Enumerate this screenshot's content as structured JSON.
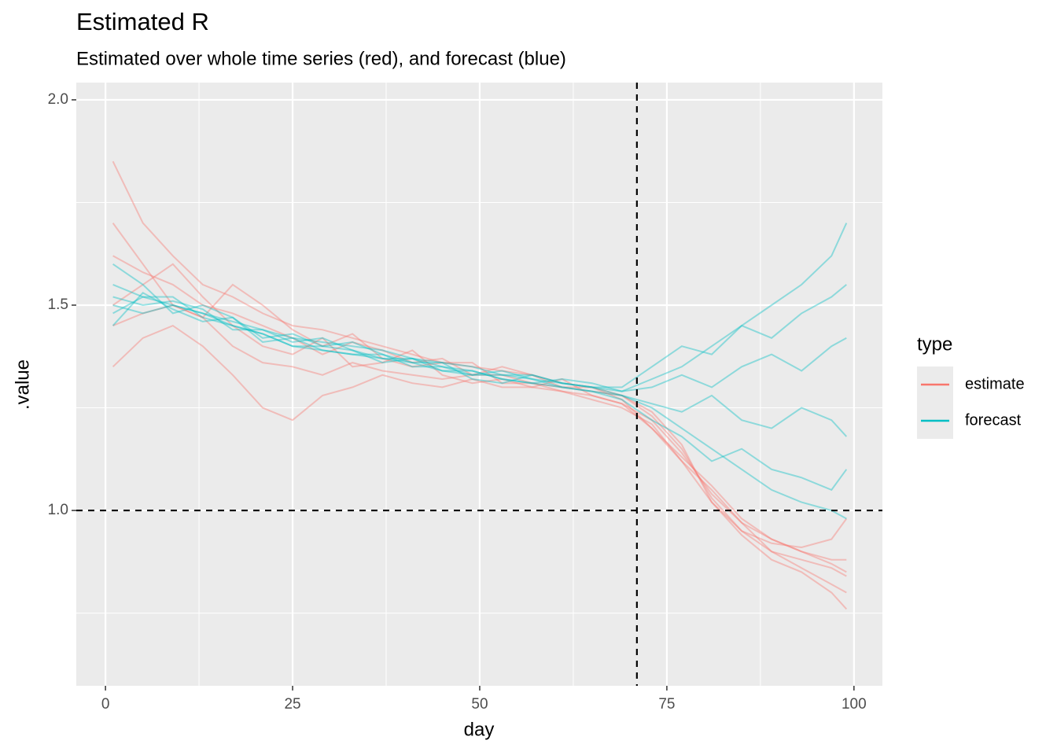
{
  "chart_data": {
    "type": "line",
    "title": "Estimated R",
    "subtitle": "Estimated over whole time series (red), and forecast (blue)",
    "x_label": "day",
    "y_label": ".value",
    "x": [
      1,
      5,
      9,
      13,
      17,
      21,
      25,
      29,
      33,
      37,
      41,
      45,
      49,
      53,
      57,
      61,
      65,
      69,
      73,
      77,
      81,
      85,
      89,
      93,
      97,
      99
    ],
    "series": [
      {
        "name": "estimate",
        "color": "#F8766D",
        "lines": [
          [
            1.85,
            1.7,
            1.62,
            1.55,
            1.52,
            1.48,
            1.45,
            1.44,
            1.42,
            1.4,
            1.38,
            1.36,
            1.35,
            1.34,
            1.33,
            1.31,
            1.3,
            1.27,
            1.2,
            1.12,
            1.02,
            0.95,
            0.92,
            0.91,
            0.93,
            0.98
          ],
          [
            1.35,
            1.42,
            1.45,
            1.4,
            1.33,
            1.25,
            1.22,
            1.28,
            1.3,
            1.33,
            1.31,
            1.3,
            1.32,
            1.3,
            1.3,
            1.29,
            1.27,
            1.25,
            1.21,
            1.12,
            1.05,
            0.97,
            0.9,
            0.86,
            0.82,
            0.8
          ],
          [
            1.62,
            1.58,
            1.55,
            1.5,
            1.48,
            1.45,
            1.42,
            1.38,
            1.41,
            1.39,
            1.36,
            1.37,
            1.33,
            1.35,
            1.33,
            1.3,
            1.3,
            1.28,
            1.23,
            1.15,
            1.03,
            0.95,
            0.9,
            0.88,
            0.86,
            0.84
          ],
          [
            1.5,
            1.55,
            1.6,
            1.52,
            1.45,
            1.4,
            1.38,
            1.42,
            1.35,
            1.36,
            1.39,
            1.33,
            1.31,
            1.32,
            1.3,
            1.32,
            1.28,
            1.26,
            1.2,
            1.13,
            1.06,
            0.98,
            0.93,
            0.9,
            0.88,
            0.88
          ],
          [
            1.7,
            1.6,
            1.5,
            1.47,
            1.55,
            1.5,
            1.44,
            1.4,
            1.43,
            1.37,
            1.35,
            1.36,
            1.36,
            1.31,
            1.31,
            1.3,
            1.29,
            1.28,
            1.24,
            1.16,
            1.02,
            0.94,
            0.88,
            0.85,
            0.8,
            0.76
          ],
          [
            1.45,
            1.48,
            1.5,
            1.47,
            1.4,
            1.36,
            1.35,
            1.33,
            1.36,
            1.34,
            1.33,
            1.32,
            1.33,
            1.33,
            1.31,
            1.29,
            1.28,
            1.26,
            1.22,
            1.14,
            1.04,
            0.97,
            0.93,
            0.9,
            0.87,
            0.85
          ]
        ]
      },
      {
        "name": "forecast",
        "color": "#00BFC4",
        "lines": [
          [
            1.55,
            1.52,
            1.5,
            1.48,
            1.46,
            1.44,
            1.42,
            1.41,
            1.4,
            1.39,
            1.37,
            1.36,
            1.35,
            1.33,
            1.33,
            1.31,
            1.3,
            1.29,
            1.32,
            1.35,
            1.4,
            1.45,
            1.5,
            1.55,
            1.62,
            1.7
          ],
          [
            1.48,
            1.52,
            1.52,
            1.47,
            1.45,
            1.43,
            1.4,
            1.39,
            1.38,
            1.37,
            1.36,
            1.34,
            1.33,
            1.33,
            1.32,
            1.31,
            1.3,
            1.28,
            1.25,
            1.2,
            1.15,
            1.1,
            1.05,
            1.02,
            1.0,
            0.98
          ],
          [
            1.6,
            1.55,
            1.48,
            1.5,
            1.47,
            1.42,
            1.43,
            1.4,
            1.41,
            1.38,
            1.35,
            1.35,
            1.34,
            1.32,
            1.31,
            1.32,
            1.31,
            1.29,
            1.3,
            1.33,
            1.3,
            1.35,
            1.38,
            1.34,
            1.4,
            1.42
          ],
          [
            1.52,
            1.5,
            1.51,
            1.49,
            1.44,
            1.44,
            1.41,
            1.42,
            1.39,
            1.37,
            1.37,
            1.35,
            1.33,
            1.34,
            1.32,
            1.3,
            1.29,
            1.28,
            1.26,
            1.24,
            1.28,
            1.22,
            1.2,
            1.25,
            1.22,
            1.18
          ],
          [
            1.45,
            1.53,
            1.49,
            1.46,
            1.47,
            1.41,
            1.42,
            1.39,
            1.38,
            1.38,
            1.36,
            1.36,
            1.32,
            1.31,
            1.33,
            1.31,
            1.3,
            1.3,
            1.35,
            1.4,
            1.38,
            1.45,
            1.42,
            1.48,
            1.52,
            1.55
          ],
          [
            1.5,
            1.48,
            1.5,
            1.48,
            1.45,
            1.43,
            1.4,
            1.4,
            1.39,
            1.36,
            1.37,
            1.34,
            1.34,
            1.32,
            1.31,
            1.3,
            1.29,
            1.27,
            1.22,
            1.18,
            1.12,
            1.15,
            1.1,
            1.08,
            1.05,
            1.1
          ]
        ]
      }
    ],
    "reference_lines": {
      "x": 71,
      "y": 1
    },
    "legend_title": "type",
    "legend": "right",
    "xlim": [
      -3.9,
      103.8
    ],
    "xticks": [
      0,
      25,
      50,
      75,
      100
    ],
    "ylim": [
      0.573,
      2.042
    ],
    "yticks": [
      {
        "value": 1,
        "label": "1.0"
      },
      {
        "value": 1.5,
        "label": "1.5"
      },
      {
        "value": 2,
        "label": "2.0"
      }
    ],
    "grid": true
  }
}
